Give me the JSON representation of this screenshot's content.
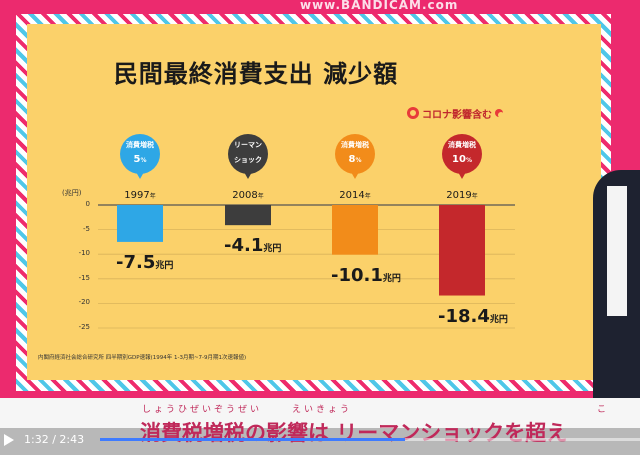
{
  "watermark": "www.BANDICAM.com",
  "chart_data": {
    "type": "bar",
    "title": "民間最終消費支出 減少額",
    "ylabel": "(兆円)",
    "ylim": [
      -25,
      0
    ],
    "yticks": [
      "0",
      "-5",
      "-10",
      "-15",
      "-20",
      "-25"
    ],
    "grid": true,
    "categories": [
      "1997",
      "2008",
      "2014",
      "2019"
    ],
    "values": [
      -7.5,
      -4.1,
      -10.1,
      -18.4
    ],
    "value_labels": [
      "-7.5",
      "-4.1",
      "-10.1",
      "-18.4"
    ],
    "unit": "兆円",
    "year_suffix": "年",
    "bar_colors": [
      "#2ea7e6",
      "#3d3d3d",
      "#f28c1a",
      "#c4282c"
    ],
    "bubbles": [
      {
        "line1": "消費増税",
        "line2": "5",
        "suffix": "%",
        "color": "#2ea7e6"
      },
      {
        "line1": "リーマン",
        "line2": "ショック",
        "suffix": "",
        "color": "#3d3d3d"
      },
      {
        "line1": "消費増税",
        "line2": "8",
        "suffix": "%",
        "color": "#f28c1a"
      },
      {
        "line1": "消費増税",
        "line2": "10",
        "suffix": "%",
        "color": "#c4282c"
      }
    ],
    "annotation": "コロナ影響含む",
    "source": "内閣府経済社会総合研究所 四半期別GDP速報(1994年 1-3月期~7-9月期1次速報値)"
  },
  "caption": {
    "ruby1": "しょうひぜいぞうぜい",
    "ruby2": "えいきょう",
    "ruby3": "こ",
    "text": "消費税増税の影響は リーマンショックを超え"
  },
  "player": {
    "time": "1:32 / 2:43",
    "progress": 0.564
  }
}
